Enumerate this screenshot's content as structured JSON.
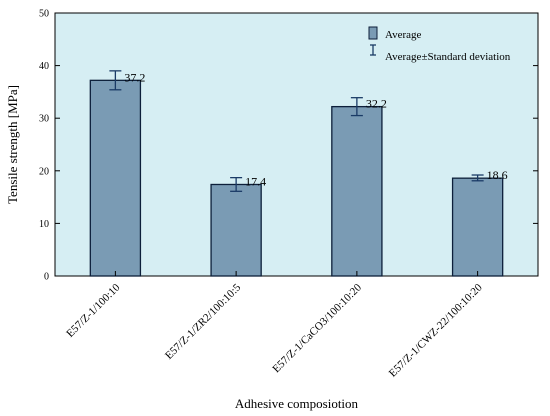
{
  "chart_data": {
    "type": "bar",
    "categories": [
      "E57/Z-1/100:10",
      "E57/Z-1/ZR2/100:10:5",
      "E57/Z-1/CaCO3/100:10:20",
      "E57/Z-1/CWZ-22/100:10:20"
    ],
    "values": [
      37.2,
      17.4,
      32.2,
      18.6
    ],
    "value_labels": [
      "37.2",
      "17.4",
      "32.2",
      "18.6"
    ],
    "error_low": [
      35.4,
      16.1,
      30.5,
      18.1
    ],
    "error_high": [
      39.0,
      18.7,
      33.9,
      19.2
    ],
    "xlabel": "Adhesive composiotion",
    "ylabel": "Tensile strength [MPa]",
    "ylim": [
      0,
      50
    ],
    "yticks": [
      0,
      10,
      20,
      30,
      40,
      50
    ],
    "ytick_labels": [
      "0",
      "10",
      "20",
      "30",
      "40",
      "50"
    ],
    "legend": {
      "placement": "top-right",
      "average_label": "Average",
      "error_label": "Average±Standard deviation"
    },
    "colors": {
      "plot_background": "#d6eef3",
      "bar_fill": "#7a9bb4",
      "bar_stroke": "#0d1f3a",
      "error_bar": "#1a3b66"
    }
  }
}
